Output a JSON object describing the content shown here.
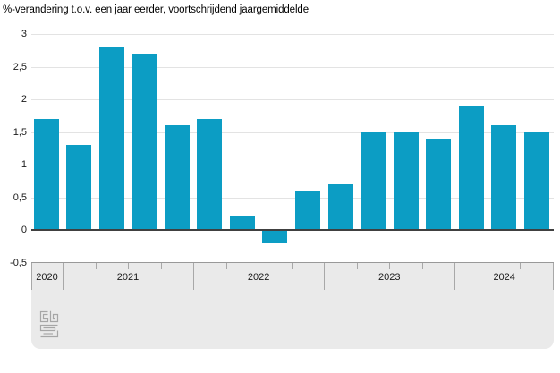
{
  "title": "%-verandering t.o.v. een jaar eerder, voortschrijdend jaargemiddelde",
  "chart_data": {
    "type": "bar",
    "title": "%-verandering t.o.v. een jaar eerder, voortschrijdend jaargemiddelde",
    "unit": "%",
    "ylim": [
      -0.5,
      3
    ],
    "ytick_step": 0.5,
    "ytick_labels": [
      "3",
      "2,5",
      "2",
      "1,5",
      "1",
      "0,5",
      "0",
      "-0,5"
    ],
    "grid": true,
    "legend": false,
    "categories": [
      "2020",
      "2021",
      "2022",
      "2023",
      "2024"
    ],
    "groups": [
      {
        "year": "2020",
        "values": [
          1.7
        ]
      },
      {
        "year": "2021",
        "values": [
          1.3,
          2.8,
          2.7,
          1.6
        ]
      },
      {
        "year": "2022",
        "values": [
          1.7,
          0.2,
          -0.2,
          0.6
        ]
      },
      {
        "year": "2023",
        "values": [
          0.7,
          1.5,
          1.5,
          1.4
        ]
      },
      {
        "year": "2024",
        "values": [
          1.9,
          1.6,
          1.5
        ]
      }
    ]
  },
  "colors": {
    "bar": "#0c9dc4",
    "gridline": "#e3e3e3",
    "zero_line": "#404040",
    "band_fill": "#eaeaea",
    "band_border": "#999999",
    "separator": "#a8a8a8",
    "text": "#1a1a1a",
    "logo": "#a6a6a6"
  },
  "branding": {
    "logo_name": "cbs-logo"
  }
}
